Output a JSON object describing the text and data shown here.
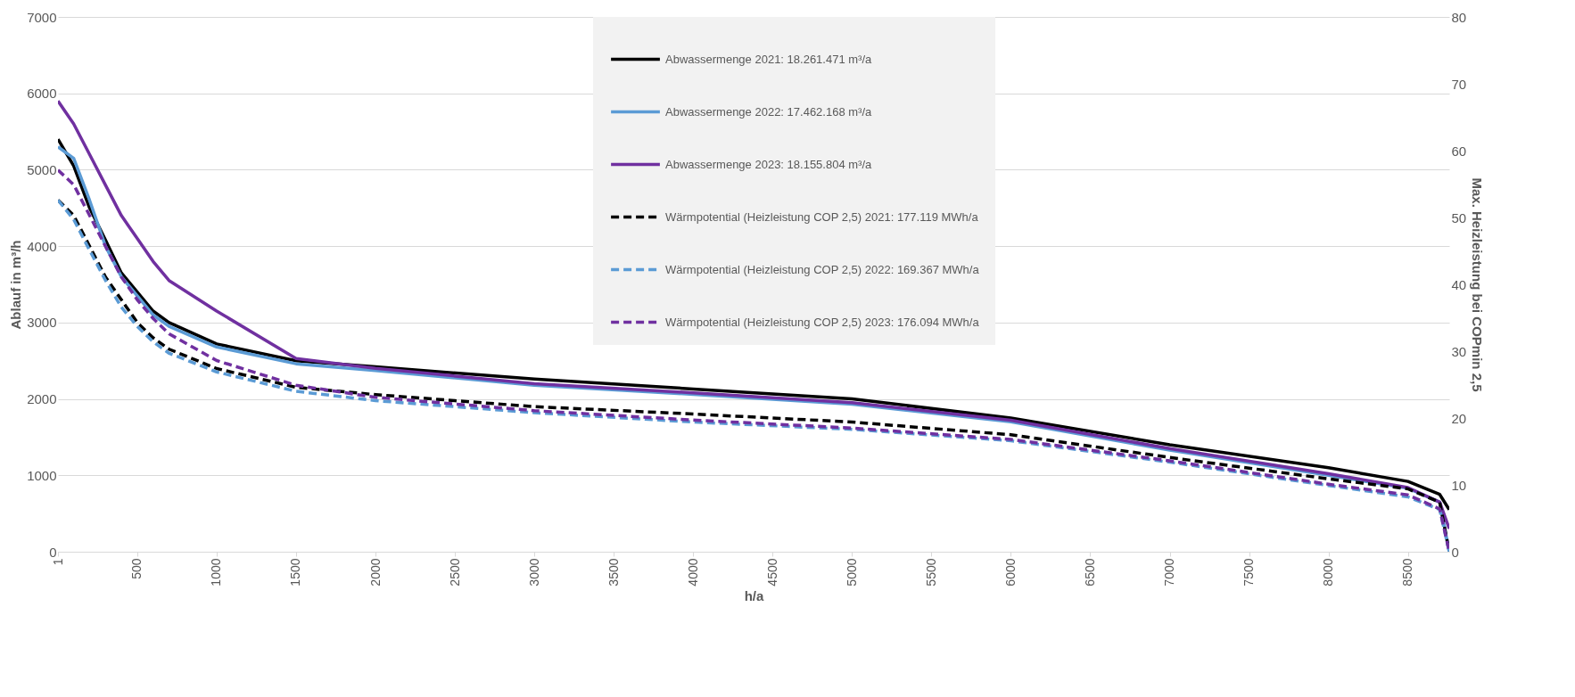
{
  "chart_data": {
    "type": "line",
    "xlabel": "h/a",
    "ylabel": "Ablauf in m³/h",
    "y2label": "Max. Heizleistung bei COPmin 2,5",
    "x": [
      1,
      100,
      200,
      300,
      400,
      500,
      600,
      700,
      1000,
      1500,
      2000,
      3000,
      4000,
      5000,
      6000,
      7000,
      8000,
      8500,
      8700,
      8760
    ],
    "xlim": [
      1,
      8760
    ],
    "xticks": [
      1,
      500,
      1000,
      1500,
      2000,
      2500,
      3000,
      3500,
      4000,
      4500,
      5000,
      5500,
      6000,
      6500,
      7000,
      7500,
      8000,
      8500
    ],
    "ylim": [
      0,
      7000
    ],
    "yticks": [
      0,
      1000,
      2000,
      3000,
      4000,
      5000,
      6000,
      7000
    ],
    "y2lim": [
      0,
      80
    ],
    "y2ticks": [
      0,
      10,
      20,
      30,
      40,
      50,
      60,
      70,
      80
    ],
    "grid": "y",
    "legend": "top right",
    "series": [
      {
        "name": "Abwassermenge 2021: 18.261.471 m³/a",
        "color": "#000000",
        "line_style": "solid",
        "values": [
          5400,
          5050,
          4500,
          4080,
          3650,
          3400,
          3150,
          3000,
          2720,
          2500,
          2420,
          2260,
          2130,
          2000,
          1750,
          1400,
          1100,
          920,
          750,
          550
        ]
      },
      {
        "name": "Abwassermenge 2022: 17.462.168 m³/a",
        "color": "#5b9bd5",
        "line_style": "solid",
        "values": [
          5300,
          5150,
          4600,
          4000,
          3600,
          3350,
          3100,
          2950,
          2680,
          2460,
          2370,
          2180,
          2060,
          1930,
          1700,
          1330,
          1000,
          830,
          650,
          0
        ]
      },
      {
        "name": "Abwassermenge 2023: 18.155.804 m³/a",
        "color": "#7030a0",
        "line_style": "solid",
        "values": [
          5900,
          5600,
          5200,
          4800,
          4400,
          4100,
          3800,
          3550,
          3150,
          2530,
          2400,
          2200,
          2080,
          1950,
          1720,
          1350,
          1020,
          840,
          650,
          300
        ]
      },
      {
        "name": "Wärmpotential (Heizleistung COP 2,5) 2021: 177.119 MWh/a",
        "color": "#000000",
        "line_style": "dashed",
        "axis": "y2",
        "values": [
          52.6,
          50.3,
          45.7,
          41.1,
          37.7,
          34.3,
          32.0,
          30.3,
          27.4,
          24.6,
          23.5,
          21.7,
          20.6,
          19.4,
          17.5,
          14.1,
          10.9,
          9.4,
          7.4,
          0
        ]
      },
      {
        "name": "Wärmpotential (Heizleistung COP 2,5) 2022: 169.367 MWh/a",
        "color": "#5b9bd5",
        "line_style": "dashed",
        "axis": "y2",
        "values": [
          52.6,
          49.7,
          45.1,
          40.6,
          36.6,
          33.7,
          31.4,
          29.7,
          26.9,
          24.0,
          22.6,
          20.8,
          19.4,
          18.3,
          16.6,
          13.4,
          9.9,
          8.2,
          6.3,
          0
        ]
      },
      {
        "name": "Wärmpotential (Heizleistung COP 2,5) 2023: 176.094 MWh/a",
        "color": "#7030a0",
        "line_style": "dashed",
        "axis": "y2",
        "values": [
          57.1,
          54.9,
          50.3,
          45.7,
          41.1,
          37.7,
          34.9,
          32.6,
          28.6,
          24.9,
          23.1,
          21.1,
          19.7,
          18.5,
          16.8,
          13.6,
          10.1,
          8.5,
          6.4,
          0
        ]
      }
    ]
  }
}
